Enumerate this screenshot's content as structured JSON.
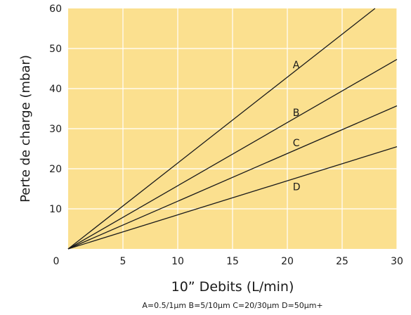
{
  "chart_data": {
    "type": "line",
    "xlabel": "10” Debits (L/min)",
    "ylabel": "Perte de charge  (mbar)",
    "note": "A=0.5/1μm B=5/10μm C=20/30μm D=50μm+",
    "xlim": [
      0,
      30
    ],
    "ylim": [
      0,
      60
    ],
    "xticks": [
      0,
      5,
      10,
      15,
      20,
      25,
      30
    ],
    "yticks": [
      10,
      20,
      30,
      40,
      50,
      60
    ],
    "origin_label": "0",
    "grid": true,
    "series": [
      {
        "name": "A",
        "x": [
          0,
          28
        ],
        "y": [
          0,
          60
        ],
        "label_at": [
          20.5,
          46
        ]
      },
      {
        "name": "B",
        "x": [
          0,
          30
        ],
        "y": [
          0,
          47.3
        ],
        "label_at": [
          20.5,
          34
        ]
      },
      {
        "name": "C",
        "x": [
          0,
          30
        ],
        "y": [
          0,
          35.7
        ],
        "label_at": [
          20.5,
          26.5
        ]
      },
      {
        "name": "D",
        "x": [
          0,
          30
        ],
        "y": [
          0,
          25.5
        ],
        "label_at": [
          20.5,
          15.5
        ]
      }
    ],
    "colors": {
      "plot_bg": "#fbe08f",
      "grid": "#ffffff",
      "line": "#1a1a1a",
      "text": "#1a1a1a"
    }
  }
}
